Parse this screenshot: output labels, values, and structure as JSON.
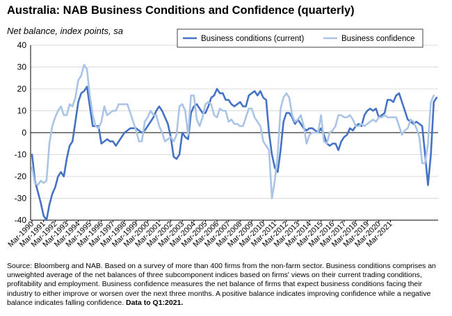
{
  "header": {
    "title": "Australia: NAB Business Conditions and Confidence (quarterly)",
    "subtitle": "Net balance, index points, sa"
  },
  "footer": {
    "source": "Source: Bloomberg and NAB. Based on a survey of more than 400 firms from the non-farm sector.  Business conditions comprises an unweighted average of the net balances of three subcomponent indices based on firms' views on their current trading conditions, profitability and employment.  Business confidence measures the net balance of firms that expect business conditions facing their industry to either improve or worsen over the next three months.  A positive balance indicates improving confidence while a negative balance indicates falling confidence. ",
    "data_note": "Data to Q1:2021."
  },
  "colors": {
    "conditions": "#4472c4",
    "confidence": "#a9c4e6",
    "gridline": "#d9d9d9",
    "axis": "#000000"
  },
  "chart_data": {
    "type": "line",
    "title": "Australia: NAB Business Conditions and Confidence (quarterly)",
    "ylabel": "Net balance, index points, sa",
    "ylim": [
      -40,
      40
    ],
    "yticks": [
      -40,
      -30,
      -20,
      -10,
      0,
      10,
      20,
      30,
      40
    ],
    "xticks": [
      "Mar-1990",
      "Mar-1991",
      "Mar-1992",
      "Mar-1993",
      "Mar-1994",
      "Mar-1995",
      "Mar-1996",
      "Mar-1997",
      "Mar-1998",
      "Mar-1999",
      "Mar-2000",
      "Mar-2001",
      "Mar-2002",
      "Mar-2003",
      "Mar-2004",
      "Mar-2005",
      "Mar-2006",
      "Mar-2007",
      "Mar-2008",
      "Mar-2009",
      "Mar-2010",
      "Mar-2011",
      "Mar-2012",
      "Mar-2013",
      "Mar-2014",
      "Mar-2015",
      "Mar-2016",
      "Mar-2017",
      "Mar-2018",
      "Mar-2019",
      "Mar-2020",
      "Mar-2021"
    ],
    "grid": true,
    "legend_position": "top-right",
    "x_start": "Mar-1990",
    "x_frequency": "quarterly",
    "series": [
      {
        "name": "Business conditions (current)",
        "color": "#4472c4",
        "values": [
          -10,
          -22,
          -27,
          -32,
          -38,
          -40,
          -33,
          -28,
          -25,
          -20,
          -18,
          -20,
          -12,
          -6,
          -4,
          5,
          14,
          18,
          19,
          21,
          12,
          3,
          3,
          3,
          -5,
          -4,
          -3,
          -4,
          -4,
          -6,
          -4,
          -2,
          0,
          1,
          2,
          2,
          2,
          1,
          0,
          1,
          3,
          5,
          7,
          10,
          12,
          10,
          7,
          4,
          -2,
          -11,
          -12,
          -10,
          0,
          -2,
          -3,
          9,
          12,
          13,
          11,
          9,
          9,
          12,
          16,
          17,
          20,
          18,
          18,
          15,
          15,
          13,
          12,
          13,
          14,
          12,
          12,
          17,
          18,
          19,
          17,
          19,
          16,
          15,
          0,
          -10,
          -16,
          -18,
          -8,
          5,
          9,
          9,
          7,
          4,
          6,
          4,
          2,
          1,
          2,
          2,
          1,
          0,
          2,
          -1,
          -5,
          -6,
          -5,
          -5,
          -8,
          -4,
          -2,
          -1,
          2,
          1,
          3,
          4,
          3,
          8,
          10,
          11,
          10,
          11,
          7,
          8,
          9,
          15,
          15,
          14,
          17,
          18,
          14,
          10,
          6,
          5,
          4,
          5,
          4,
          3,
          -10,
          -24,
          -10,
          14,
          16
        ]
      },
      {
        "name": "Business confidence",
        "color": "#a9c4e6",
        "values": [
          -16,
          -23,
          -24,
          -22,
          -23,
          -22,
          -5,
          3,
          7,
          10,
          12,
          8,
          8,
          13,
          12,
          16,
          24,
          26,
          31,
          29,
          17,
          8,
          3,
          2,
          5,
          12,
          8,
          9,
          10,
          10,
          13,
          13,
          13,
          13,
          9,
          5,
          1,
          -4,
          -4,
          5,
          7,
          10,
          8,
          8,
          3,
          0,
          -4,
          -3,
          -2,
          -4,
          -1,
          12,
          13,
          10,
          -1,
          17,
          17,
          6,
          3,
          7,
          13,
          14,
          13,
          8,
          7,
          11,
          10,
          10,
          5,
          6,
          4,
          4,
          3,
          3,
          7,
          11,
          11,
          7,
          5,
          3,
          -4,
          -6,
          -8,
          -30,
          -22,
          -10,
          11,
          16,
          18,
          16,
          8,
          5,
          6,
          8,
          3,
          -5,
          -1,
          0,
          0,
          0,
          8,
          -4,
          -5,
          0,
          1,
          3,
          8,
          8,
          7,
          7,
          8,
          6,
          3,
          3,
          4,
          3,
          4,
          5,
          6,
          5,
          7,
          7,
          8,
          7,
          7,
          7,
          7,
          3,
          -1,
          1,
          2,
          6,
          5,
          2,
          -2,
          -14,
          -14,
          -5,
          14,
          17
        ]
      }
    ]
  }
}
